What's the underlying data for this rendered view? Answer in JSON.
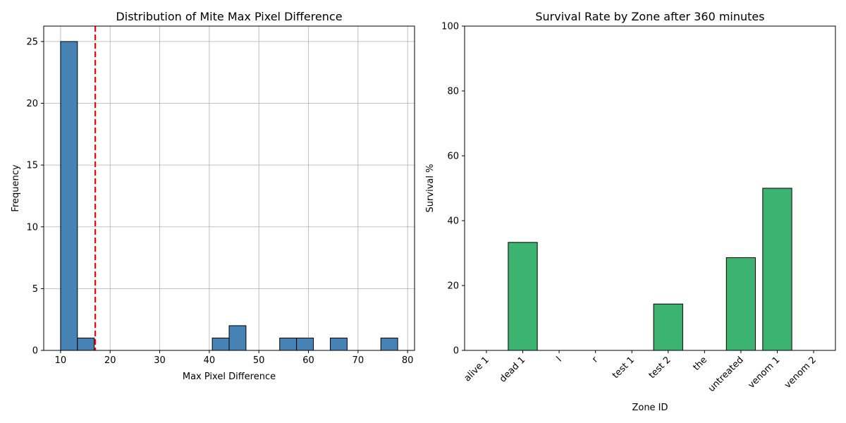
{
  "chart_data": [
    {
      "type": "bar",
      "title": "Distribution of Mite Max Pixel Difference",
      "xlabel": "Max Pixel Difference",
      "ylabel": "Frequency",
      "xlim": [
        6.6,
        81.4
      ],
      "ylim": [
        0,
        26.25
      ],
      "xticks": [
        10,
        20,
        30,
        40,
        50,
        60,
        70,
        80
      ],
      "yticks": [
        0,
        5,
        10,
        15,
        20,
        25
      ],
      "grid": true,
      "bar_color": "#4682b4",
      "bins": [
        {
          "start": 10.0,
          "end": 13.4,
          "count": 25
        },
        {
          "start": 13.4,
          "end": 16.8,
          "count": 1
        },
        {
          "start": 40.6,
          "end": 44.0,
          "count": 1
        },
        {
          "start": 44.0,
          "end": 47.4,
          "count": 2
        },
        {
          "start": 54.2,
          "end": 57.6,
          "count": 1
        },
        {
          "start": 57.6,
          "end": 61.0,
          "count": 1
        },
        {
          "start": 64.4,
          "end": 67.8,
          "count": 1
        },
        {
          "start": 74.6,
          "end": 78.0,
          "count": 1
        }
      ],
      "threshold_line": {
        "x": 17,
        "color": "#ff0000",
        "style": "dashed"
      }
    },
    {
      "type": "bar",
      "title": "Survival Rate by Zone after 360 minutes",
      "xlabel": "Zone ID",
      "ylabel": "Survival %",
      "ylim": [
        0,
        100
      ],
      "yticks": [
        0,
        20,
        40,
        60,
        80,
        100
      ],
      "grid": false,
      "bar_color": "#3cb371",
      "categories": [
        "alive 1",
        "dead 1",
        "l",
        "r",
        "test 1",
        "test 2",
        "the",
        "untreated",
        "venom 1",
        "venom 2"
      ],
      "values": [
        0,
        33.3,
        0,
        0,
        0,
        14.3,
        0,
        28.6,
        50,
        0
      ]
    }
  ]
}
